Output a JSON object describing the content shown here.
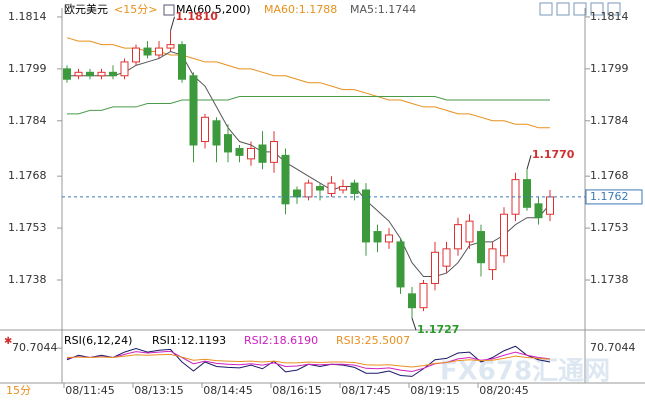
{
  "chart_data": {
    "type": "candlestick",
    "title": "欧元美元",
    "period": "<15分>",
    "indicator": "MA(60,5,200)",
    "categories": [
      null,
      null,
      "08/11:45",
      null,
      null,
      null,
      null,
      null,
      "08/13:15",
      null,
      null,
      null,
      null,
      null,
      "08/14:45",
      null,
      null,
      null,
      null,
      null,
      "08/16:15",
      null,
      null,
      null,
      null,
      null,
      "08/17:45",
      null,
      null,
      null,
      null,
      null,
      "08/19:15",
      null,
      null,
      null,
      null,
      null,
      "08/20:45",
      null,
      null,
      null,
      null
    ],
    "open": [
      1.1799,
      1.1797,
      1.1798,
      1.1797,
      1.1798,
      1.1797,
      1.1801,
      1.1805,
      1.1803,
      1.1805,
      1.1806,
      1.1797,
      1.1778,
      1.1784,
      1.178,
      1.1776,
      1.1773,
      1.1777,
      1.1772,
      1.1774,
      1.1764,
      1.1762,
      1.1765,
      1.1763,
      1.1764,
      1.1766,
      1.1764,
      1.1752,
      1.1749,
      1.1749,
      1.1734,
      1.173,
      1.1737,
      1.1742,
      1.1747,
      1.1749,
      1.1752,
      1.1741,
      1.1745,
      1.1757,
      1.1767,
      1.176,
      1.1757
    ],
    "high": [
      1.18,
      1.1799,
      1.1799,
      1.1799,
      1.18,
      1.1802,
      1.1806,
      1.1807,
      1.1807,
      1.181,
      1.1807,
      1.1798,
      1.1786,
      1.1785,
      1.1783,
      1.1777,
      1.1778,
      1.1781,
      1.1781,
      1.1776,
      1.1765,
      1.1767,
      1.1766,
      1.1768,
      1.1767,
      1.1767,
      1.1766,
      1.1754,
      1.1753,
      1.175,
      1.1736,
      1.1738,
      1.1749,
      1.1749,
      1.1756,
      1.1757,
      1.1754,
      1.1749,
      1.1759,
      1.1769,
      1.177,
      1.1762,
      1.1764
    ],
    "low": [
      1.1795,
      1.1796,
      1.1796,
      1.1796,
      1.1796,
      1.1796,
      1.18,
      1.1802,
      1.1802,
      1.1804,
      1.1795,
      1.1772,
      1.1776,
      1.1772,
      1.1772,
      1.1772,
      1.1771,
      1.177,
      1.1769,
      1.1757,
      1.176,
      1.1761,
      1.1761,
      1.1762,
      1.1763,
      1.1761,
      1.1745,
      1.1746,
      1.1747,
      1.1734,
      1.1727,
      1.1729,
      1.1735,
      1.174,
      1.1745,
      1.1747,
      1.1739,
      1.1738,
      1.1743,
      1.1755,
      1.1758,
      1.1754,
      1.1755
    ],
    "close": [
      1.1796,
      1.1798,
      1.1797,
      1.1798,
      1.1797,
      1.1801,
      1.1805,
      1.1803,
      1.1805,
      1.1806,
      1.1796,
      1.1777,
      1.1785,
      1.1777,
      1.1775,
      1.1774,
      1.1776,
      1.1772,
      1.1778,
      1.176,
      1.1762,
      1.1766,
      1.1764,
      1.1766,
      1.1765,
      1.1763,
      1.1749,
      1.1749,
      1.1751,
      1.1736,
      1.173,
      1.1737,
      1.1746,
      1.1747,
      1.1754,
      1.1755,
      1.1743,
      1.1747,
      1.1757,
      1.1767,
      1.1759,
      1.1756,
      1.1762
    ],
    "up_color": "#e03030",
    "down_color": "#3c9a3c",
    "series": [
      {
        "name": "MA60:1.1788",
        "color": "#e8901c",
        "values": [
          1.1808,
          1.1807,
          1.1807,
          1.1806,
          1.1806,
          1.1805,
          1.1805,
          1.1804,
          1.1804,
          1.1803,
          1.1803,
          1.1802,
          1.1801,
          1.1801,
          1.18,
          1.1799,
          1.1799,
          1.1798,
          1.1797,
          1.1797,
          1.1796,
          1.1795,
          1.1795,
          1.1794,
          1.1793,
          1.1793,
          1.1792,
          1.1791,
          1.179,
          1.179,
          1.1789,
          1.1788,
          1.1788,
          1.1787,
          1.1786,
          1.1786,
          1.1785,
          1.1784,
          1.1784,
          1.1783,
          1.1783,
          1.1782,
          1.1782
        ]
      },
      {
        "name": "MA5:1.1744",
        "color": "#555555",
        "values": [
          1.1797,
          1.1797,
          1.1797,
          1.1797,
          1.1797,
          1.1798,
          1.18,
          1.1801,
          1.1802,
          1.1804,
          1.1803,
          1.1797,
          1.1794,
          1.1788,
          1.1782,
          1.1778,
          1.1777,
          1.1775,
          1.1775,
          1.1772,
          1.177,
          1.1768,
          1.1766,
          1.1764,
          1.1765,
          1.1765,
          1.1761,
          1.1758,
          1.1755,
          1.175,
          1.1743,
          1.1739,
          1.1739,
          1.174,
          1.1743,
          1.1748,
          1.1749,
          1.1749,
          1.1751,
          1.1754,
          1.1756,
          1.1756,
          1.176
        ]
      },
      {
        "color": "#4a9a4a",
        "values": [
          1.1786,
          1.1786,
          1.1787,
          1.1787,
          1.1788,
          1.1788,
          1.1788,
          1.1789,
          1.1789,
          1.1789,
          1.179,
          1.179,
          1.179,
          1.179,
          1.179,
          1.1791,
          1.1791,
          1.1791,
          1.1791,
          1.1791,
          1.1791,
          1.1791,
          1.1791,
          1.1791,
          1.1791,
          1.1791,
          1.1791,
          1.1791,
          1.1791,
          1.1791,
          1.1791,
          1.1791,
          1.1791,
          1.179,
          1.179,
          1.179,
          1.179,
          1.179,
          1.179,
          1.179,
          1.179,
          1.179,
          1.179
        ]
      }
    ],
    "ylim": [
      1.1725,
      1.1816
    ],
    "yticks": [
      1.1814,
      1.1799,
      1.1784,
      1.1768,
      1.1753,
      1.1738
    ],
    "current_price": 1.1762,
    "annotations": [
      {
        "value": 1.181,
        "label": "1.1810",
        "color": "#d03030",
        "at": "high"
      },
      {
        "value": 1.1727,
        "label": "1.1727",
        "color": "#2a9a2a",
        "at": "low"
      },
      {
        "value": 1.177,
        "label": "1.1770",
        "color": "#d03030",
        "at": "high"
      }
    ],
    "watermark": "FX678汇通网",
    "footer_period": "15分",
    "rsi": {
      "title": "RSI(6,12,24)",
      "ylim": [
        0,
        100
      ],
      "yticks": [
        70.7044
      ],
      "series": [
        {
          "name": "RSI1:12.1193",
          "color": "#1a1a6a",
          "values": [
            45,
            55,
            50,
            55,
            50,
            62,
            70,
            62,
            66,
            68,
            40,
            20,
            40,
            30,
            28,
            27,
            33,
            25,
            42,
            18,
            22,
            35,
            30,
            35,
            33,
            28,
            15,
            15,
            20,
            10,
            8,
            25,
            45,
            48,
            60,
            62,
            40,
            50,
            65,
            75,
            55,
            45,
            40
          ]
        },
        {
          "name": "RSI2:18.6190",
          "color": "#d020c0",
          "values": [
            48,
            52,
            50,
            52,
            50,
            57,
            63,
            60,
            62,
            64,
            50,
            36,
            42,
            37,
            35,
            34,
            36,
            33,
            38,
            30,
            31,
            35,
            34,
            35,
            35,
            33,
            26,
            25,
            27,
            22,
            19,
            26,
            36,
            39,
            47,
            50,
            44,
            47,
            55,
            62,
            55,
            50,
            47
          ]
        },
        {
          "name": "RSI3:25.5007",
          "color": "#e89020",
          "values": [
            50,
            51,
            50,
            51,
            50,
            53,
            56,
            55,
            56,
            57,
            51,
            44,
            46,
            43,
            42,
            41,
            42,
            40,
            42,
            38,
            38,
            40,
            39,
            40,
            40,
            39,
            34,
            33,
            34,
            31,
            29,
            32,
            37,
            39,
            43,
            45,
            43,
            44,
            48,
            53,
            50,
            48,
            46
          ]
        }
      ]
    }
  }
}
